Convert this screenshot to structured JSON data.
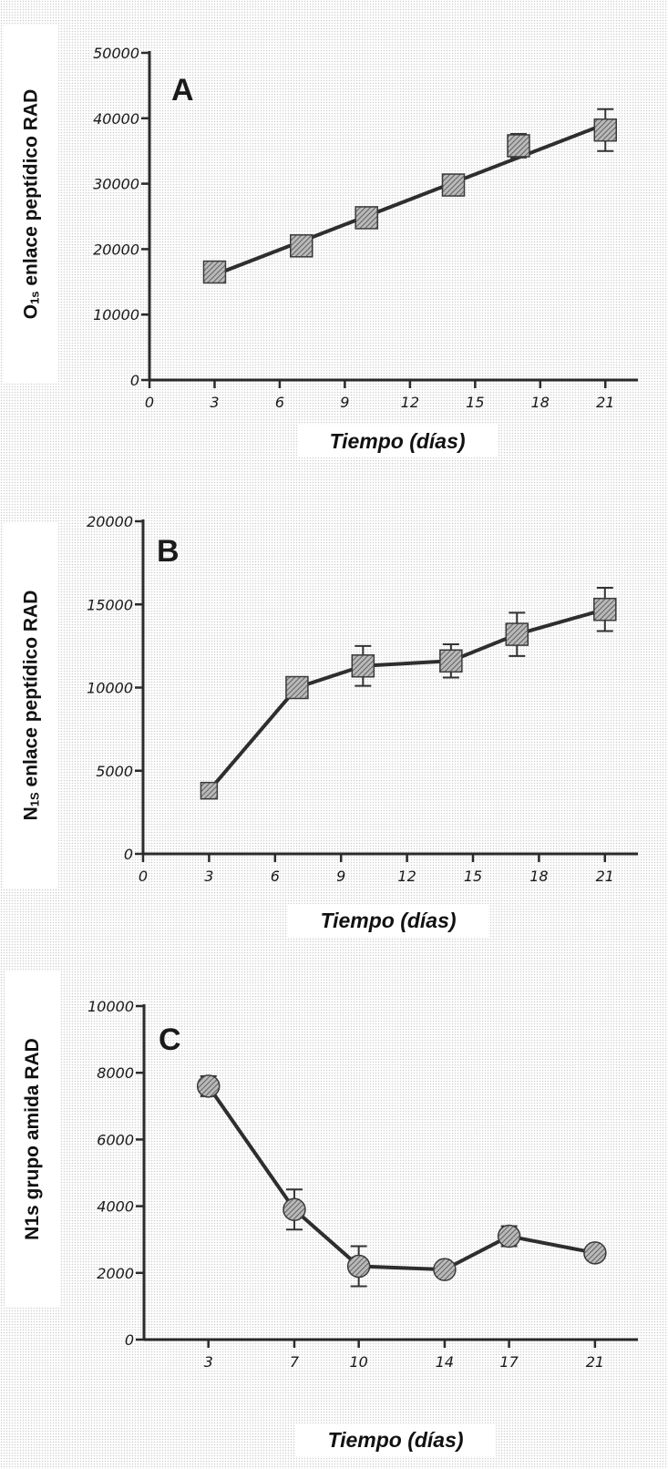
{
  "chart_data": [
    {
      "type": "line",
      "panel_letter": "A",
      "ylabel_main": "O",
      "ylabel_sub": "1s",
      "ylabel_rest": " enlace peptídico RAD",
      "xlabel": "Tiempo (días)",
      "xlim": [
        0,
        22.5
      ],
      "ylim": [
        0,
        50000
      ],
      "xticks": [
        0,
        3,
        6,
        9,
        12,
        15,
        18,
        21
      ],
      "yticks": [
        0,
        10000,
        20000,
        30000,
        40000,
        50000
      ],
      "marker": "square",
      "fit_line": true,
      "series": [
        {
          "x": [
            3,
            7,
            10,
            14,
            17,
            21
          ],
          "y": [
            16500,
            20500,
            24800,
            29800,
            35800,
            38200
          ],
          "err": [
            1200,
            900,
            1000,
            1100,
            1800,
            3200
          ]
        }
      ]
    },
    {
      "type": "line",
      "panel_letter": "B",
      "ylabel_main": "N",
      "ylabel_sub": "1S",
      "ylabel_rest": " enlace peptídico RAD",
      "xlabel": "Tiempo (días)",
      "xlim": [
        0,
        22.5
      ],
      "ylim": [
        0,
        20000
      ],
      "xticks": [
        0,
        3,
        6,
        9,
        12,
        15,
        18,
        21
      ],
      "yticks": [
        0,
        5000,
        10000,
        15000,
        20000
      ],
      "marker": "square",
      "fit_line": false,
      "series": [
        {
          "x": [
            3,
            7,
            10,
            14,
            17,
            21
          ],
          "y": [
            3800,
            10000,
            11300,
            11600,
            13200,
            14700
          ],
          "err": [
            200,
            300,
            1200,
            1000,
            1300,
            1300
          ]
        }
      ]
    },
    {
      "type": "line",
      "panel_letter": "C",
      "ylabel_main": "N1s grupo amida RAD",
      "ylabel_sub": "",
      "ylabel_rest": "",
      "xlabel": "Tiempo (días)",
      "xlim": [
        0,
        23
      ],
      "ylim": [
        0,
        10000
      ],
      "xticks": [
        3,
        7,
        10,
        14,
        17,
        21
      ],
      "yticks": [
        0,
        2000,
        4000,
        6000,
        8000,
        10000
      ],
      "marker": "circle",
      "fit_line": false,
      "series": [
        {
          "x": [
            3,
            7,
            10,
            14,
            17,
            21
          ],
          "y": [
            7600,
            3900,
            2200,
            2100,
            3100,
            2600
          ],
          "err": [
            300,
            600,
            600,
            200,
            300,
            200
          ]
        }
      ]
    }
  ]
}
